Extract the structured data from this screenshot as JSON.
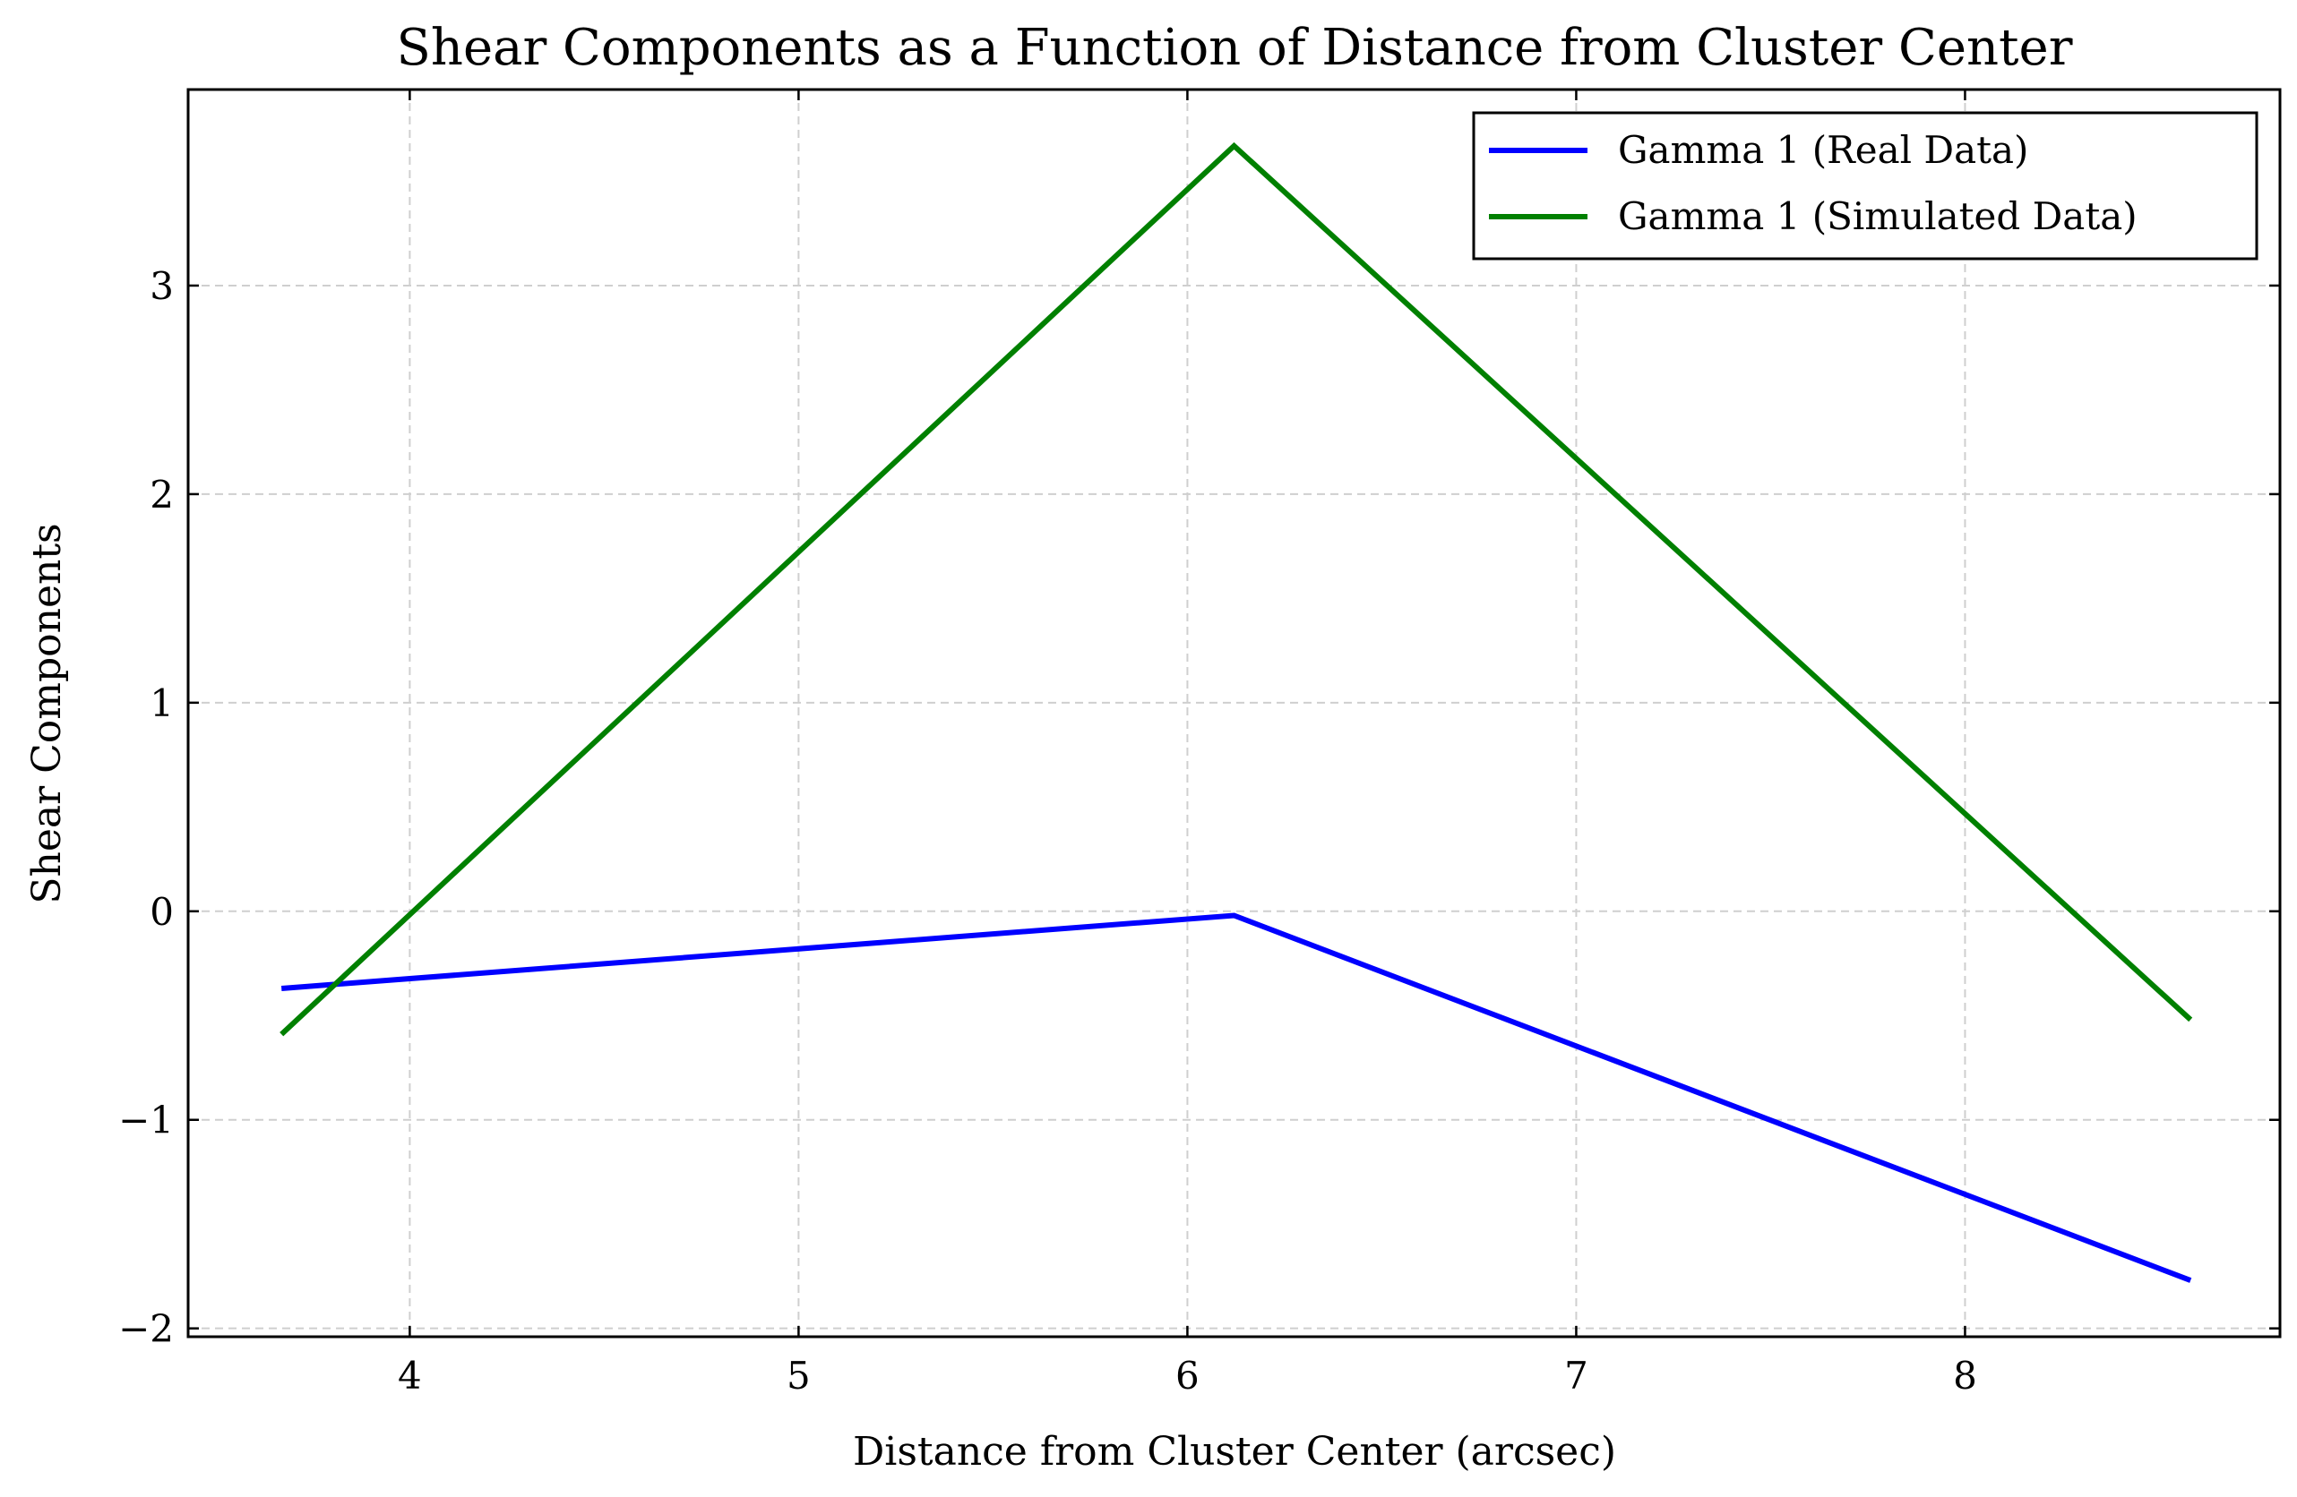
{
  "chart_data": {
    "type": "line",
    "title": "Shear Components as a Function of Distance from Cluster Center",
    "xlabel": "Distance from Cluster Center (arcsec)",
    "ylabel": "Shear Components",
    "xlim": [
      3.43,
      8.81
    ],
    "ylim": [
      -2.04,
      3.94
    ],
    "x_ticks": [
      4,
      5,
      6,
      7,
      8
    ],
    "y_ticks": [
      -2,
      -1,
      0,
      1,
      2,
      3
    ],
    "x_tick_labels": [
      "4",
      "5",
      "6",
      "7",
      "8"
    ],
    "y_tick_labels": [
      "−2",
      "−1",
      "0",
      "1",
      "2",
      "3"
    ],
    "grid": true,
    "legend_position": "top-right",
    "series": [
      {
        "name": "Gamma 1 (Real Data)",
        "color": "#0000ff",
        "x": [
          3.67,
          6.12,
          8.58
        ],
        "y": [
          -0.37,
          -0.02,
          -1.77
        ]
      },
      {
        "name": "Gamma 1 (Simulated Data)",
        "color": "#008000",
        "x": [
          3.67,
          6.12,
          8.58
        ],
        "y": [
          -0.59,
          3.67,
          -0.52
        ]
      }
    ]
  }
}
